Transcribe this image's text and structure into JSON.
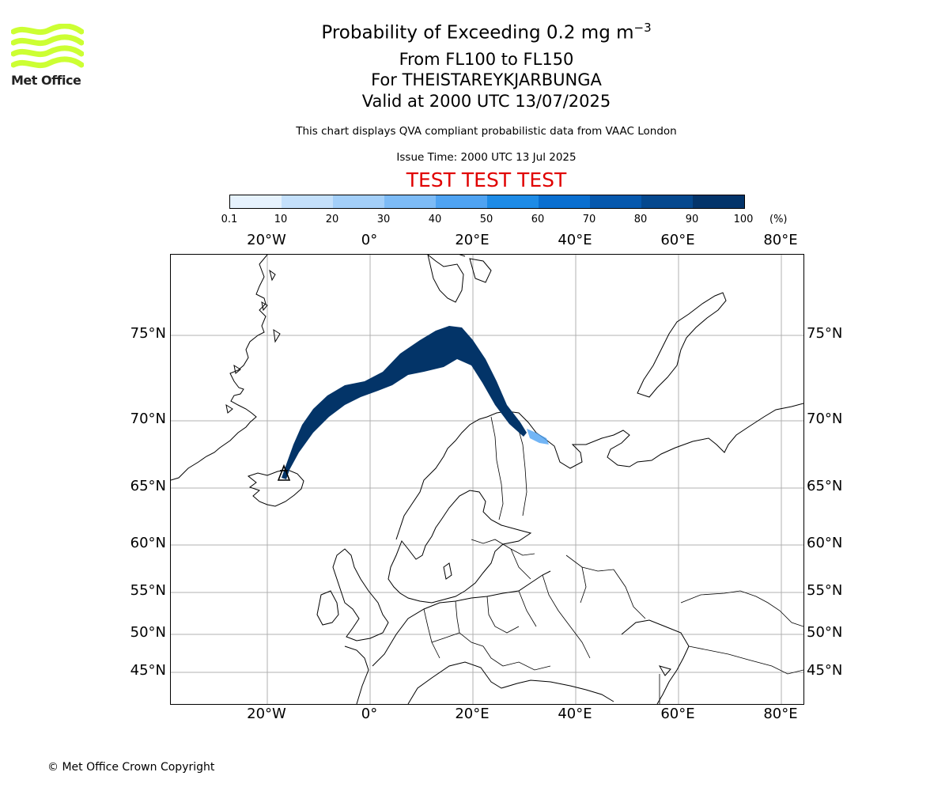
{
  "header": {
    "title_main": "Probability of Exceeding 0.2 mg m",
    "title_exp": "−3",
    "line1": "From FL100 to FL150",
    "line2": "For THEISTAREYKJARBUNGA",
    "line3": "Valid at 2000 UTC 13/07/2025",
    "note": "This chart displays QVA compliant probabilistic data from VAAC London",
    "issue_time": "Issue Time: 2000 UTC 13 Jul 2025",
    "test_banner": "TEST TEST TEST"
  },
  "logo": {
    "text": "Met Office",
    "color": "#ccff33"
  },
  "colorbar": {
    "ticks": [
      "0.1",
      "10",
      "20",
      "30",
      "40",
      "50",
      "60",
      "70",
      "80",
      "90",
      "100"
    ],
    "unit": "(%)",
    "colors": [
      "#e6f2fd",
      "#c4e0fb",
      "#a3cff9",
      "#7dbbf6",
      "#4fa3f2",
      "#1e8be6",
      "#0a6fd0",
      "#0658ad",
      "#05488e",
      "#03346a"
    ]
  },
  "map": {
    "lon_labels": [
      "20°W",
      "0°",
      "20°E",
      "40°E",
      "60°E",
      "80°E"
    ],
    "lat_labels": [
      "75°N",
      "70°N",
      "65°N",
      "60°N",
      "55°N",
      "50°N",
      "45°N"
    ],
    "plume_color": "#033468",
    "volcano_symbol": "triangle"
  },
  "footer": {
    "copyright": "© Met Office Crown Copyright"
  }
}
